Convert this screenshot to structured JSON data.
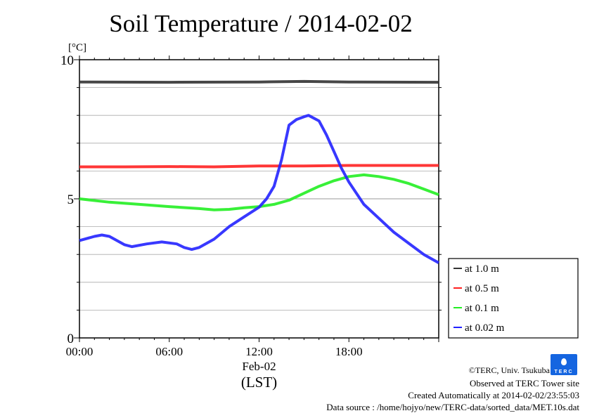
{
  "title": "Soil Temperature / 2014-02-02",
  "chart_data": {
    "type": "line",
    "title": "Soil Temperature / 2014-02-02",
    "ylabel": "[°C]",
    "xlabel": "(LST)",
    "date_label": "Feb-02",
    "ylim": [
      0,
      10
    ],
    "xlim_hours": [
      0,
      24
    ],
    "yticks": [
      "0",
      "5",
      "10"
    ],
    "xticks": [
      {
        "h": 0,
        "label": "00:00"
      },
      {
        "h": 6,
        "label": "06:00"
      },
      {
        "h": 12,
        "label": "12:00"
      },
      {
        "h": 18,
        "label": "18:00"
      }
    ],
    "grid": true,
    "legend_position": "bottom-right outside",
    "series": [
      {
        "name": "at 1.0 m",
        "color": "#333333",
        "x": [
          0,
          6,
          12,
          15,
          18,
          24
        ],
        "y": [
          9.2,
          9.19,
          9.2,
          9.22,
          9.2,
          9.19
        ]
      },
      {
        "name": "at 0.5 m",
        "color": "#ff2020",
        "x": [
          0,
          3,
          6,
          9,
          12,
          15,
          18,
          21,
          24
        ],
        "y": [
          6.15,
          6.15,
          6.16,
          6.15,
          6.18,
          6.18,
          6.2,
          6.2,
          6.2
        ]
      },
      {
        "name": "at 0.1 m",
        "color": "#22ee22",
        "x": [
          0,
          2,
          4,
          6,
          8,
          9,
          10,
          11,
          12,
          13,
          14,
          15,
          16,
          17,
          18,
          19,
          20,
          21,
          22,
          23,
          24
        ],
        "y": [
          5.0,
          4.88,
          4.8,
          4.72,
          4.65,
          4.6,
          4.62,
          4.68,
          4.72,
          4.8,
          4.95,
          5.2,
          5.45,
          5.65,
          5.8,
          5.86,
          5.8,
          5.7,
          5.55,
          5.35,
          5.15
        ]
      },
      {
        "name": "at 0.02 m",
        "color": "#2222ff",
        "x": [
          0,
          1,
          1.5,
          2,
          3,
          3.5,
          4.5,
          5.5,
          6.5,
          7,
          7.5,
          8,
          9,
          10,
          11,
          12,
          12.5,
          13,
          13.5,
          14,
          14.5,
          15,
          15.3,
          16,
          16.5,
          17,
          17.5,
          18,
          19,
          20,
          21,
          22,
          23,
          24
        ],
        "y": [
          3.5,
          3.65,
          3.7,
          3.65,
          3.35,
          3.28,
          3.38,
          3.45,
          3.38,
          3.25,
          3.18,
          3.25,
          3.55,
          4.0,
          4.35,
          4.7,
          5.0,
          5.45,
          6.4,
          7.65,
          7.85,
          7.95,
          8.0,
          7.8,
          7.3,
          6.7,
          6.1,
          5.6,
          4.8,
          4.3,
          3.8,
          3.4,
          3.0,
          2.7
        ]
      }
    ]
  },
  "footer": {
    "copyright": "©TERC, Univ. Tsukuba",
    "site": "Observed at TERC Tower site",
    "created": "Created Automatically at 2014-02-02/23:55:03",
    "source": "Data source : /home/hojyo/new/TERC-data/sorted_data/MET.10s.dat",
    "logo_text": "TERC"
  }
}
